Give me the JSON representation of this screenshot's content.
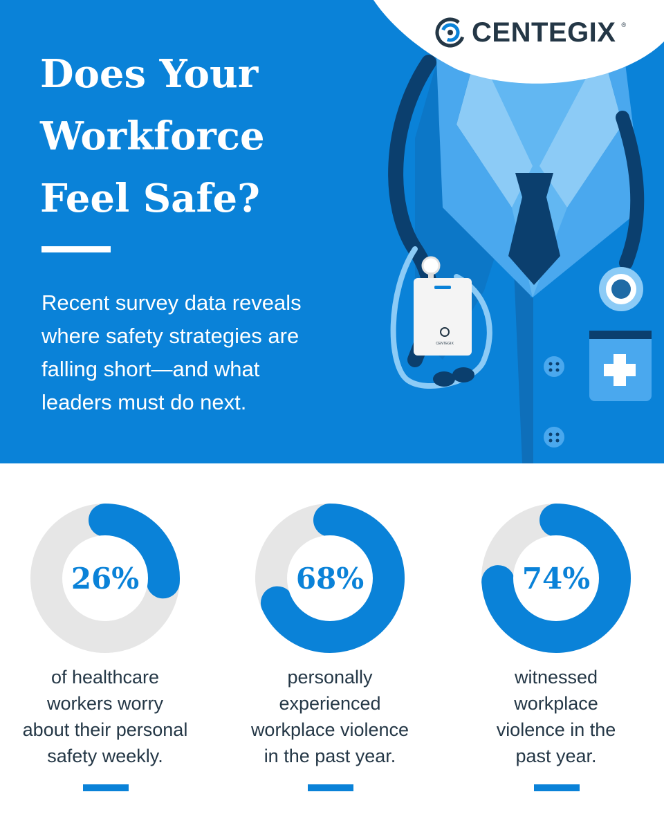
{
  "brand": {
    "name": "CENTEGIX",
    "registered_mark": "®",
    "badge_text": "CENTEGIX"
  },
  "hero": {
    "title_lines": [
      "Does Your",
      "Workforce",
      "Feel Safe?"
    ],
    "subtitle_lines": [
      "Recent survey data reveals",
      "where safety strategies are",
      "falling short—and what",
      "leaders must do next."
    ]
  },
  "colors": {
    "primary": "#0a82d8",
    "dark": "#243746",
    "track": "#e6e6e6"
  },
  "stats": [
    {
      "value": "26%",
      "fraction": 0.26,
      "caption_lines": [
        "of healthcare",
        "workers worry",
        "about their personal",
        "safety weekly."
      ]
    },
    {
      "value": "68%",
      "fraction": 0.68,
      "caption_lines": [
        "personally",
        "experienced",
        "workplace violence",
        "in the past year."
      ]
    },
    {
      "value": "74%",
      "fraction": 0.74,
      "caption_lines": [
        "witnessed",
        "workplace",
        "violence in the",
        "past year."
      ]
    }
  ]
}
